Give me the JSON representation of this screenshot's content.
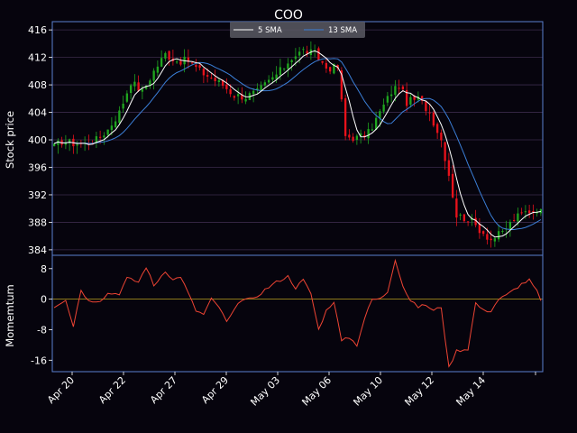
{
  "chart_data": {
    "type": "candlestick",
    "title": "COO",
    "colors": {
      "background": "#06040d",
      "axes_border": "#5a7fd0",
      "grid": "#3a2a4a",
      "up": "#1fa51f",
      "down": "#e8121b",
      "sma5": "#ffffff",
      "sma13": "#3b7fd8",
      "momentum": "#ee4433",
      "zero_line": "#b8a020"
    },
    "price_panel": {
      "ylabel": "Stock price",
      "ylim": [
        383.2,
        417.2
      ],
      "yticks": [
        384,
        388,
        392,
        396,
        400,
        404,
        408,
        412,
        416
      ],
      "grid": true,
      "legend": {
        "placement": "upper center",
        "entries": [
          "5 SMA",
          "13 SMA"
        ]
      }
    },
    "momentum_panel": {
      "ylabel": "Momemtum",
      "ylim": [
        -19,
        11.5
      ],
      "yticks": [
        -16,
        -8,
        0,
        8
      ]
    },
    "x_tick_labels": [
      "Apr 20",
      "Apr 22",
      "Apr 27",
      "Apr 29",
      "May 03",
      "May 06",
      "May 10",
      "May 12",
      "May 14"
    ],
    "close_anchors": [
      [
        0,
        399.0
      ],
      [
        2,
        399.8
      ],
      [
        5,
        399.5
      ],
      [
        8,
        399.4
      ],
      [
        11,
        400.0
      ],
      [
        14,
        401.5
      ],
      [
        17,
        404.0
      ],
      [
        20,
        408.5
      ],
      [
        23,
        407.0
      ],
      [
        26,
        410.0
      ],
      [
        29,
        412.5
      ],
      [
        32,
        411.5
      ],
      [
        35,
        411.5
      ],
      [
        38,
        410.0
      ],
      [
        41,
        409.0
      ],
      [
        44,
        408.0
      ],
      [
        47,
        406.5
      ],
      [
        50,
        406.3
      ],
      [
        53,
        407.0
      ],
      [
        56,
        408.5
      ],
      [
        59,
        410.0
      ],
      [
        62,
        412.0
      ],
      [
        65,
        413.0
      ],
      [
        68,
        412.5
      ],
      [
        71,
        410.5
      ],
      [
        74,
        410.5
      ],
      [
        76,
        400.5
      ],
      [
        79,
        400.3
      ],
      [
        82,
        401.0
      ],
      [
        85,
        404.0
      ],
      [
        88,
        407.0
      ],
      [
        90,
        408.0
      ],
      [
        92,
        405.5
      ],
      [
        95,
        406.0
      ],
      [
        98,
        404.0
      ],
      [
        101,
        400.0
      ],
      [
        103,
        395.0
      ],
      [
        105,
        389.0
      ],
      [
        108,
        388.5
      ],
      [
        111,
        387.0
      ],
      [
        114,
        385.5
      ],
      [
        117,
        386.5
      ],
      [
        120,
        388.5
      ],
      [
        123,
        389.5
      ],
      [
        126,
        390.0
      ],
      [
        127,
        389.5
      ]
    ],
    "momentum_anchors": [
      [
        0,
        -2
      ],
      [
        3,
        0
      ],
      [
        5,
        -7
      ],
      [
        7,
        2.5
      ],
      [
        9,
        -0.5
      ],
      [
        12,
        -0.3
      ],
      [
        14,
        1.5
      ],
      [
        17,
        1.5
      ],
      [
        19,
        5.5
      ],
      [
        22,
        4.5
      ],
      [
        24,
        8.5
      ],
      [
        26,
        3.5
      ],
      [
        29,
        7.5
      ],
      [
        31,
        5
      ],
      [
        33,
        6
      ],
      [
        35,
        1.5
      ],
      [
        37,
        -3
      ],
      [
        39,
        -4
      ],
      [
        41,
        0
      ],
      [
        43,
        -2
      ],
      [
        45,
        -6
      ],
      [
        47,
        -3
      ],
      [
        49,
        0
      ],
      [
        52,
        0
      ],
      [
        55,
        2.5
      ],
      [
        58,
        4.5
      ],
      [
        61,
        6
      ],
      [
        63,
        3
      ],
      [
        65,
        5
      ],
      [
        67,
        1.5
      ],
      [
        69,
        -8
      ],
      [
        71,
        -3
      ],
      [
        73,
        -0.5
      ],
      [
        75,
        -11
      ],
      [
        77,
        -10
      ],
      [
        79,
        -12
      ],
      [
        81,
        -5
      ],
      [
        83,
        0
      ],
      [
        85,
        0
      ],
      [
        87,
        2
      ],
      [
        89,
        10.5
      ],
      [
        91,
        3.5
      ],
      [
        93,
        -0.5
      ],
      [
        95,
        -2
      ],
      [
        97,
        -1.5
      ],
      [
        99,
        -3
      ],
      [
        101,
        -2
      ],
      [
        103,
        -18
      ],
      [
        105,
        -13.5
      ],
      [
        108,
        -13
      ],
      [
        110,
        -1
      ],
      [
        112,
        -3
      ],
      [
        114,
        -3
      ],
      [
        116,
        0
      ],
      [
        118,
        1
      ],
      [
        120,
        2.5
      ],
      [
        122,
        4
      ],
      [
        124,
        5
      ],
      [
        126,
        2
      ],
      [
        127,
        -0.5
      ]
    ]
  }
}
